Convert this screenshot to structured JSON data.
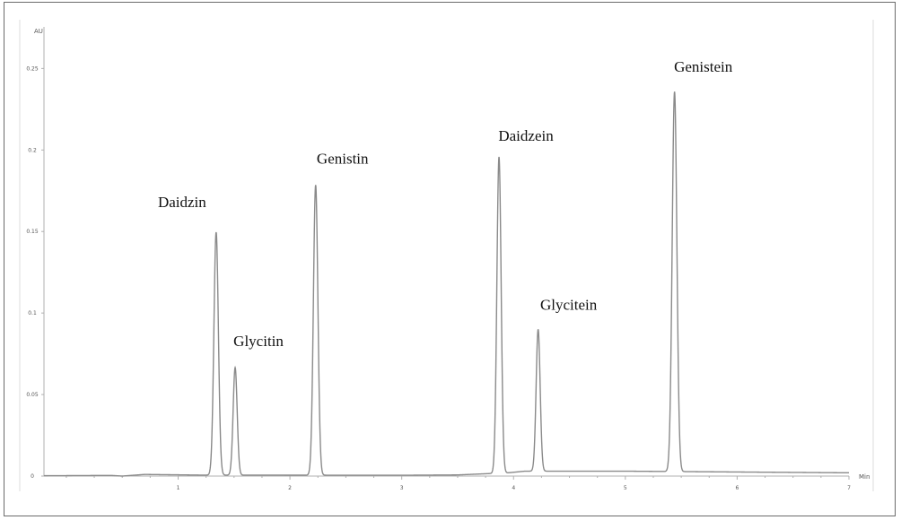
{
  "chart_data": {
    "type": "line",
    "title": "",
    "xlabel": "Min",
    "ylabel": "AU",
    "xlim": [
      -0.2,
      7.0
    ],
    "ylim": [
      0.0,
      0.27
    ],
    "x_ticks": [
      1,
      2,
      3,
      4,
      5,
      6,
      7
    ],
    "x_tick_labels": [
      "1",
      "2",
      "3",
      "4",
      "5",
      "6",
      "7"
    ],
    "y_ticks": [
      0,
      0.05,
      0.1,
      0.15,
      0.2,
      0.25
    ],
    "y_tick_labels": [
      "0",
      "0.05",
      "0.1",
      "0.15",
      "0.2",
      "0.25"
    ],
    "grid": false,
    "baseline": [
      {
        "x": -0.2,
        "y": 0.0002
      },
      {
        "x": 0.4,
        "y": 0.0004
      },
      {
        "x": 0.5,
        "y": 0.0
      },
      {
        "x": 0.7,
        "y": 0.001
      },
      {
        "x": 1.2,
        "y": 0.0006
      },
      {
        "x": 3.0,
        "y": 0.0005
      },
      {
        "x": 3.5,
        "y": 0.0007
      },
      {
        "x": 3.95,
        "y": 0.002
      },
      {
        "x": 4.1,
        "y": 0.003
      },
      {
        "x": 5.0,
        "y": 0.003
      },
      {
        "x": 6.0,
        "y": 0.0025
      },
      {
        "x": 7.0,
        "y": 0.002
      }
    ],
    "peaks": [
      {
        "name": "Daidzin",
        "rt": 1.34,
        "height": 0.149,
        "width": 0.02
      },
      {
        "name": "Glycitin",
        "rt": 1.51,
        "height": 0.066,
        "width": 0.018
      },
      {
        "name": "Genistin",
        "rt": 2.23,
        "height": 0.178,
        "width": 0.02
      },
      {
        "name": "Daidzein",
        "rt": 3.87,
        "height": 0.194,
        "width": 0.019
      },
      {
        "name": "Glycitein",
        "rt": 4.22,
        "height": 0.087,
        "width": 0.018
      },
      {
        "name": "Genistein",
        "rt": 5.44,
        "height": 0.233,
        "width": 0.021
      }
    ],
    "line_color": "#8a8a8a",
    "axis_color": "#b0b0b0",
    "frame_color": "#6b6b6b"
  }
}
